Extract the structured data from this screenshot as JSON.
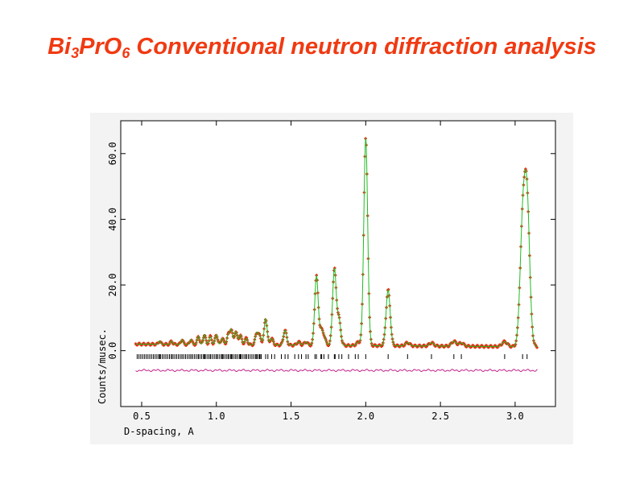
{
  "slide": {
    "title_prefix": "Bi",
    "title_sub1": "3",
    "title_mid": "PrO",
    "title_sub2": "6",
    "title_suffix": " Conventional neutron diffraction analysis"
  },
  "chart_data": {
    "type": "line",
    "title": "",
    "xlabel": "D-spacing, A",
    "ylabel": "Counts/musec.",
    "xlim": [
      0.36,
      3.27
    ],
    "ylim": [
      -17,
      70
    ],
    "x_ticks": [
      0.5,
      1.0,
      1.5,
      2.0,
      2.5,
      3.0
    ],
    "x_tick_labels": [
      "0.5",
      "1.0",
      "1.5",
      "2.0",
      "2.5",
      "3.0"
    ],
    "y_ticks": [
      0,
      20,
      40,
      60
    ],
    "y_tick_labels": [
      "0.0",
      "20.0",
      "40.0",
      "60.0"
    ],
    "x_range": [
      0.46,
      3.15
    ],
    "background": 2.0,
    "peaks": [
      {
        "x": 0.62,
        "y": 1.0
      },
      {
        "x": 0.7,
        "y": 1.0
      },
      {
        "x": 0.77,
        "y": 1.5
      },
      {
        "x": 0.83,
        "y": 1.5
      },
      {
        "x": 0.88,
        "y": 2.5
      },
      {
        "x": 0.92,
        "y": 3.0
      },
      {
        "x": 0.96,
        "y": 2.5
      },
      {
        "x": 1.0,
        "y": 3.0
      },
      {
        "x": 1.04,
        "y": 2.0
      },
      {
        "x": 1.08,
        "y": 3.0
      },
      {
        "x": 1.1,
        "y": 4.5
      },
      {
        "x": 1.13,
        "y": 4.0
      },
      {
        "x": 1.16,
        "y": 3.0
      },
      {
        "x": 1.2,
        "y": 2.0
      },
      {
        "x": 1.27,
        "y": 3.5
      },
      {
        "x": 1.29,
        "y": 2.5
      },
      {
        "x": 1.33,
        "y": 8.0
      },
      {
        "x": 1.37,
        "y": 2.0
      },
      {
        "x": 1.46,
        "y": 4.5
      },
      {
        "x": 1.55,
        "y": 1.0
      },
      {
        "x": 1.6,
        "y": 1.0
      },
      {
        "x": 1.67,
        "y": 21.0
      },
      {
        "x": 1.7,
        "y": 4.0
      },
      {
        "x": 1.72,
        "y": 2.5
      },
      {
        "x": 1.79,
        "y": 23.0
      },
      {
        "x": 1.82,
        "y": 8.0
      },
      {
        "x": 1.95,
        "y": 1.0
      },
      {
        "x": 2.0,
        "y": 63.0
      },
      {
        "x": 2.15,
        "y": 17.0
      },
      {
        "x": 2.28,
        "y": 1.0
      },
      {
        "x": 2.44,
        "y": 1.0
      },
      {
        "x": 2.59,
        "y": 1.5
      },
      {
        "x": 2.64,
        "y": 1.0
      },
      {
        "x": 2.93,
        "y": 1.5
      },
      {
        "x": 3.05,
        "y": 34.0
      },
      {
        "x": 3.08,
        "y": 42.0
      }
    ],
    "reflection_tick_y": -1.8,
    "difference_offset": -6.0,
    "series": [
      {
        "color": "#e03010"
      },
      {
        "color": "#22bb22"
      },
      {
        "color": "#c0208a"
      }
    ],
    "tick_color": "#000000"
  }
}
